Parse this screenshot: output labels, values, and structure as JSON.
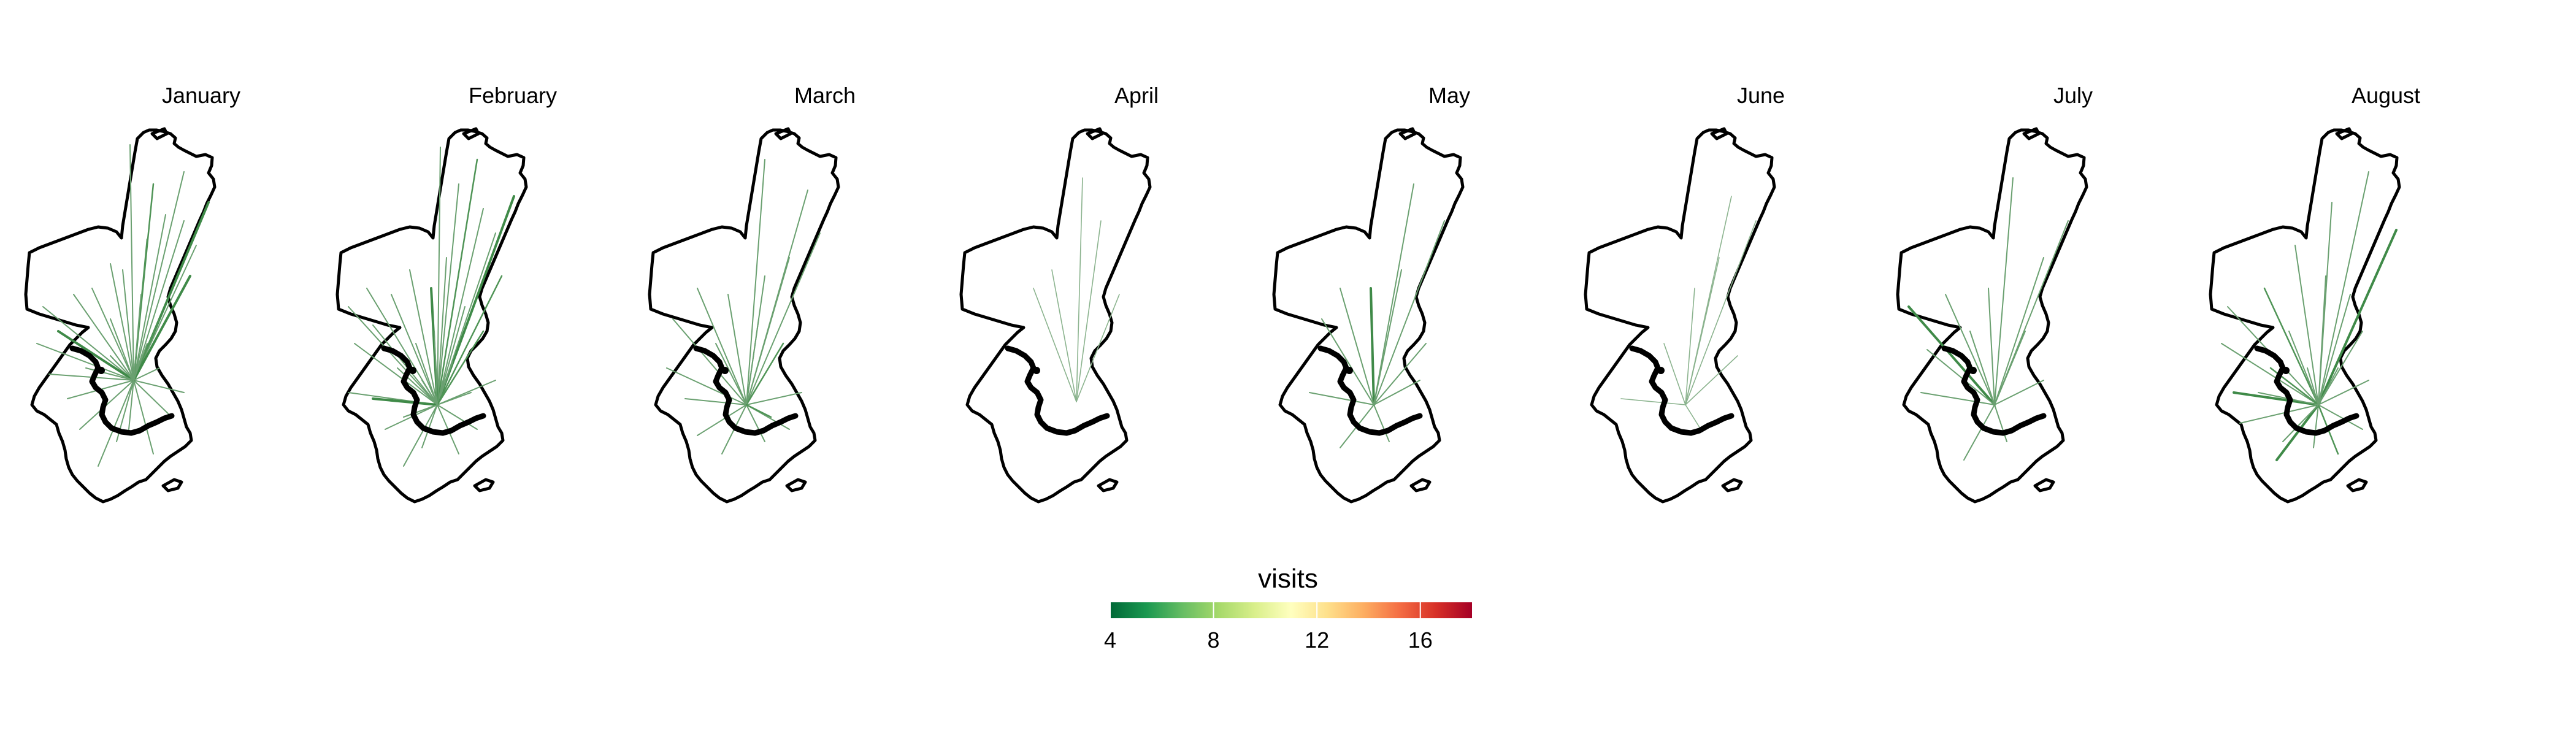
{
  "panels": [
    {
      "title": "January"
    },
    {
      "title": "February"
    },
    {
      "title": "March"
    },
    {
      "title": "April"
    },
    {
      "title": "May"
    },
    {
      "title": "June"
    },
    {
      "title": "July"
    },
    {
      "title": "August"
    }
  ],
  "legend": {
    "title": "visits",
    "min": 4,
    "max": 18,
    "ticks": [
      {
        "value": 4,
        "label": "4"
      },
      {
        "value": 8,
        "label": "8"
      },
      {
        "value": 12,
        "label": "12"
      },
      {
        "value": 16,
        "label": "16"
      }
    ],
    "colors": [
      "#006837",
      "#1a9850",
      "#66bd63",
      "#a6d96a",
      "#d9ef8b",
      "#ffffbf",
      "#fee08b",
      "#fdae61",
      "#f46d43",
      "#d73027",
      "#a50026"
    ]
  },
  "colors": {
    "boundary": "#000000",
    "background": "#ffffff"
  }
}
